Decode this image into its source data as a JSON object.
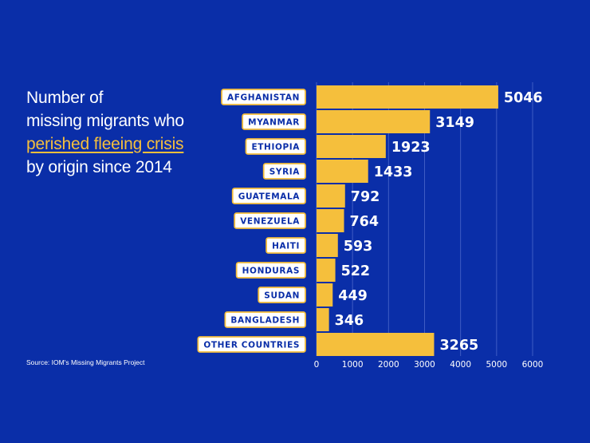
{
  "title": {
    "line1": "Number of",
    "line2": "missing migrants who",
    "highlight": "perished fleeing crisis",
    "line4": "by origin since 2014"
  },
  "source": "Source: IOM's Missing Migrants Project",
  "colors": {
    "background": "#0a2ea8",
    "bar": "#f5bf3c",
    "label_bg": "#ffffff",
    "label_text": "#0a2ea8",
    "gridline": "#3f5cc4",
    "text": "#ffffff"
  },
  "chart_data": {
    "type": "bar",
    "orientation": "horizontal",
    "title": "Number of missing migrants who perished fleeing crisis by origin since 2014",
    "categories": [
      "AFGHANISTAN",
      "MYANMAR",
      "ETHIOPIA",
      "SYRIA",
      "GUATEMALA",
      "VENEZUELA",
      "HAITI",
      "HONDURAS",
      "SUDAN",
      "BANGLADESH",
      "OTHER COUNTRIES"
    ],
    "values": [
      5046,
      3149,
      1923,
      1433,
      792,
      764,
      593,
      522,
      449,
      346,
      3265
    ],
    "xlim": [
      0,
      6000
    ],
    "xticks": [
      0,
      1000,
      2000,
      3000,
      4000,
      5000,
      6000
    ],
    "grid": true,
    "xlabel": "",
    "ylabel": ""
  }
}
